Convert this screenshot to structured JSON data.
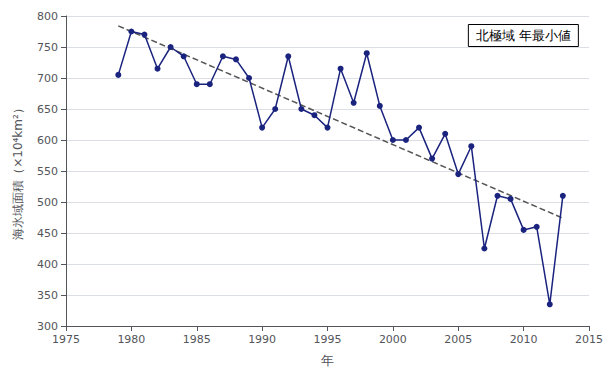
{
  "chart_data": {
    "type": "line",
    "title": "北極域 年最小値",
    "xlabel": "年",
    "ylabel": "海氷域面積（×10⁴km²）",
    "x": [
      1979,
      1980,
      1981,
      1982,
      1983,
      1984,
      1985,
      1986,
      1987,
      1988,
      1989,
      1990,
      1991,
      1992,
      1993,
      1994,
      1995,
      1996,
      1997,
      1998,
      1999,
      2000,
      2001,
      2002,
      2003,
      2004,
      2005,
      2006,
      2007,
      2008,
      2009,
      2010,
      2011,
      2012,
      2013
    ],
    "series": [
      {
        "color": "#1a237e",
        "marker": "circle",
        "line_style": "solid",
        "values": [
          705,
          775,
          770,
          715,
          750,
          735,
          690,
          690,
          735,
          730,
          700,
          620,
          650,
          735,
          650,
          640,
          620,
          715,
          660,
          740,
          655,
          600,
          600,
          620,
          570,
          610,
          545,
          590,
          425,
          510,
          505,
          455,
          460,
          335,
          510
        ]
      },
      {
        "color": "#555555",
        "marker": "none",
        "line_style": "dashed",
        "x": [
          1979,
          2013
        ],
        "values": [
          784.0476,
          473.9524
        ]
      }
    ],
    "xlim": [
      1975,
      2015
    ],
    "xticks": [
      1975,
      1980,
      1985,
      1990,
      1995,
      2000,
      2005,
      2010,
      2015
    ],
    "ylim": [
      300,
      800
    ],
    "yticks": [
      300,
      350,
      400,
      450,
      500,
      550,
      600,
      650,
      700,
      750,
      800
    ],
    "grid": true
  }
}
